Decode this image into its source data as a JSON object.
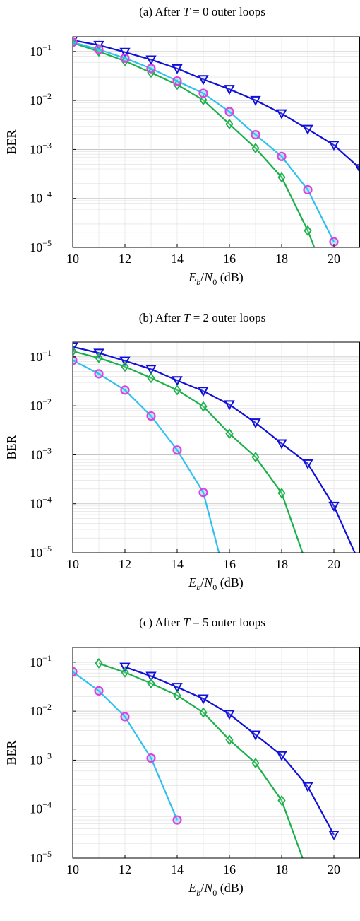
{
  "chart_data": [
    {
      "type": "line",
      "title_parts": [
        "(a) After ",
        "T",
        " = 0 outer loops"
      ],
      "xlabel_parts": [
        "E",
        "b",
        "/",
        "N",
        "0",
        " (dB)"
      ],
      "ylabel": "BER",
      "x_ticks": [
        "10",
        "12",
        "14",
        "16",
        "18",
        "20"
      ],
      "y_tick_mantissa": "10",
      "y_tick_exponents": [
        "−1",
        "−2",
        "−3",
        "−4",
        "−5"
      ],
      "xlim": [
        10,
        21
      ],
      "ylim": [
        1e-05,
        0.2
      ],
      "yscale": "log",
      "grid": true,
      "series": [
        {
          "color": "#1010d8",
          "marker": "triangle-down",
          "x": [
            10,
            11,
            12,
            13,
            14,
            15,
            16,
            17,
            18,
            19,
            20,
            21
          ],
          "y": [
            0.17,
            0.135,
            0.097,
            0.068,
            0.045,
            0.027,
            0.017,
            0.0101,
            0.0054,
            0.0026,
            0.00123,
            0.00041
          ]
        },
        {
          "color": "#1bb04a",
          "marker": "diamond",
          "x": [
            10,
            11,
            12,
            13,
            14,
            15,
            16,
            17,
            18,
            19,
            19.25
          ],
          "y": [
            0.15,
            0.1,
            0.064,
            0.037,
            0.021,
            0.0102,
            0.0033,
            0.00106,
            0.00027,
            2.2e-05,
            1e-05
          ]
        },
        {
          "color": "#2fc0f0",
          "marker": "circle",
          "marker_edge": "#e040e0",
          "x": [
            10,
            11,
            12,
            13,
            14,
            15,
            16,
            17,
            18,
            19,
            20
          ],
          "y": [
            0.155,
            0.11,
            0.073,
            0.045,
            0.025,
            0.014,
            0.0059,
            0.002,
            0.00072,
            0.00015,
            1.3e-05
          ]
        }
      ]
    },
    {
      "type": "line",
      "title_parts": [
        "(b) After ",
        "T",
        " = 2 outer loops"
      ],
      "xlabel_parts": [
        "E",
        "b",
        "/",
        "N",
        "0",
        " (dB)"
      ],
      "ylabel": "BER",
      "x_ticks": [
        "10",
        "12",
        "14",
        "16",
        "18",
        "20"
      ],
      "y_tick_mantissa": "10",
      "y_tick_exponents": [
        "−1",
        "−2",
        "−3",
        "−4",
        "−5"
      ],
      "xlim": [
        10,
        21
      ],
      "ylim": [
        1e-05,
        0.2
      ],
      "yscale": "log",
      "grid": true,
      "series": [
        {
          "color": "#1010d8",
          "marker": "triangle-down",
          "x": [
            10,
            11,
            12,
            13,
            14,
            15,
            16,
            17,
            18,
            19,
            20,
            20.8
          ],
          "y": [
            0.16,
            0.12,
            0.083,
            0.056,
            0.033,
            0.02,
            0.0106,
            0.0045,
            0.0017,
            0.00066,
            9e-05,
            1e-05
          ]
        },
        {
          "color": "#1bb04a",
          "marker": "diamond",
          "x": [
            10,
            11,
            12,
            13,
            14,
            15,
            16,
            17,
            18,
            18.8
          ],
          "y": [
            0.13,
            0.095,
            0.063,
            0.037,
            0.021,
            0.0097,
            0.0027,
            0.0009,
            0.000165,
            1e-05
          ]
        },
        {
          "color": "#2fc0f0",
          "marker": "circle",
          "marker_edge": "#e040e0",
          "x": [
            10,
            11,
            12,
            13,
            14,
            15,
            15.6
          ],
          "y": [
            0.085,
            0.045,
            0.021,
            0.0062,
            0.00125,
            0.00017,
            1e-05
          ]
        }
      ]
    },
    {
      "type": "line",
      "title_parts": [
        "(c) After ",
        "T",
        " = 5 outer loops"
      ],
      "xlabel_parts": [
        "E",
        "b",
        "/",
        "N",
        "0",
        " (dB)"
      ],
      "ylabel": "BER",
      "x_ticks": [
        "10",
        "12",
        "14",
        "16",
        "18",
        "20"
      ],
      "y_tick_mantissa": "10",
      "y_tick_exponents": [
        "−1",
        "−2",
        "−3",
        "−4",
        "−5"
      ],
      "xlim": [
        10,
        21
      ],
      "ylim": [
        1e-05,
        0.2
      ],
      "yscale": "log",
      "grid": true,
      "series": [
        {
          "color": "#1010d8",
          "marker": "triangle-down",
          "x": [
            12,
            13,
            14,
            15,
            16,
            17,
            18,
            19,
            20
          ],
          "y": [
            0.08,
            0.052,
            0.031,
            0.018,
            0.0087,
            0.0033,
            0.00125,
            0.00029,
            3e-05
          ]
        },
        {
          "color": "#1bb04a",
          "marker": "diamond",
          "x": [
            11,
            12,
            13,
            14,
            15,
            16,
            17,
            18,
            18.8
          ],
          "y": [
            0.095,
            0.062,
            0.037,
            0.021,
            0.0094,
            0.0026,
            0.00087,
            0.00015,
            1e-05
          ]
        },
        {
          "color": "#2fc0f0",
          "marker": "circle",
          "marker_edge": "#e040e0",
          "x": [
            10,
            11,
            12,
            13,
            14
          ],
          "y": [
            0.064,
            0.026,
            0.0077,
            0.0011,
            6e-05
          ]
        }
      ]
    }
  ]
}
